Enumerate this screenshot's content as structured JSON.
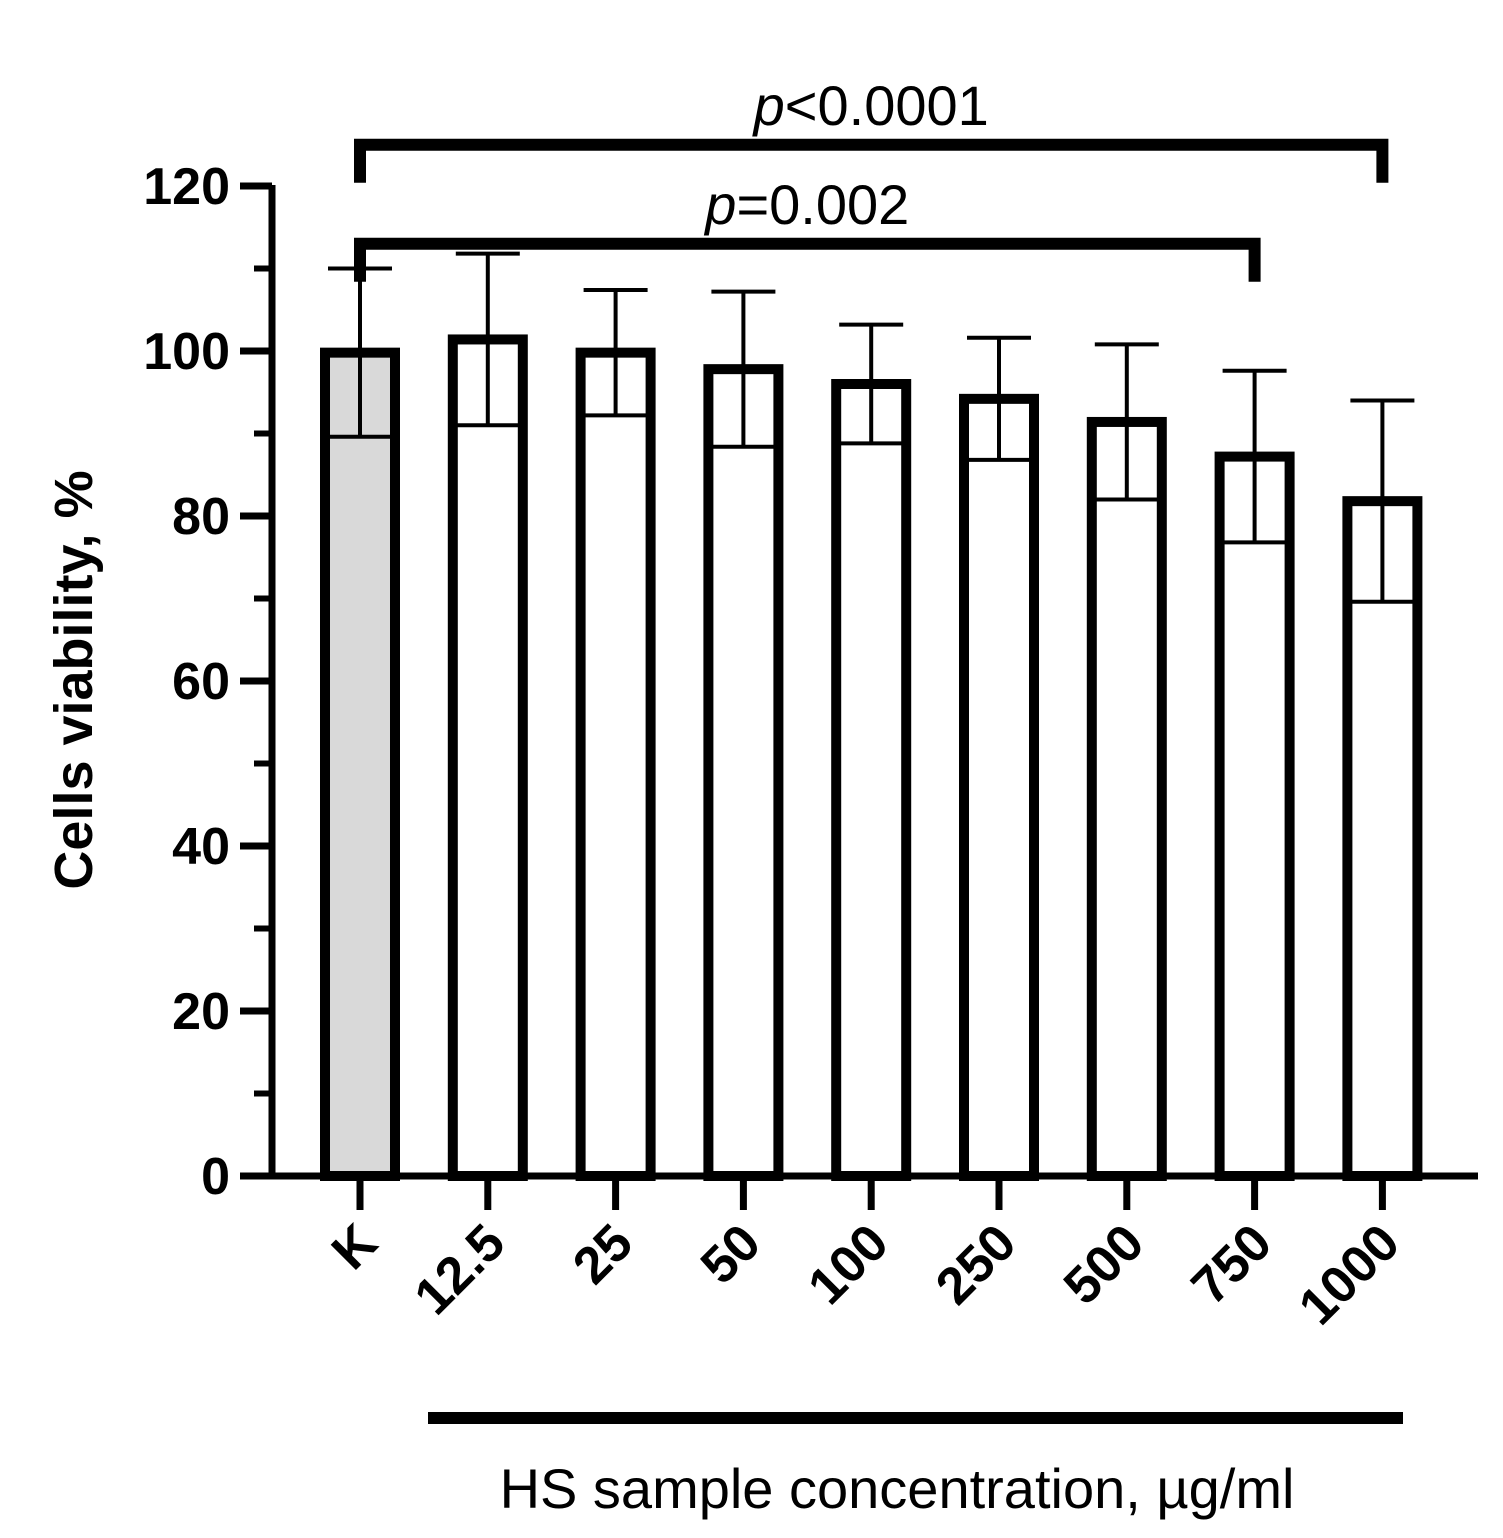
{
  "chart_data": {
    "type": "bar",
    "categories": [
      "K",
      "12.5",
      "25",
      "50",
      "100",
      "250",
      "500",
      "750",
      "1000"
    ],
    "values": [
      99.8,
      101.4,
      99.8,
      97.8,
      96.0,
      94.2,
      91.4,
      87.2,
      81.8
    ],
    "errors": [
      10.2,
      10.4,
      7.6,
      9.4,
      7.2,
      7.4,
      9.4,
      10.4,
      12.2
    ],
    "bar_fill_colors": [
      "#d9d9d9",
      "#ffffff",
      "#ffffff",
      "#ffffff",
      "#ffffff",
      "#ffffff",
      "#ffffff",
      "#ffffff",
      "#ffffff"
    ],
    "ylabel": "Cells viability, %",
    "xlabel": "HS sample concentration, µg/ml",
    "ylim": [
      0,
      120
    ],
    "yticks": [
      0,
      20,
      40,
      60,
      80,
      100,
      120
    ],
    "grid": false,
    "annotations": [
      {
        "prefix": "p",
        "text": "<0.0001",
        "from": "K",
        "to": "1000",
        "bracket_y": 125
      },
      {
        "prefix": "p",
        "text": "=0.002",
        "from": "K",
        "to": "750",
        "bracket_y": 113
      }
    ]
  }
}
